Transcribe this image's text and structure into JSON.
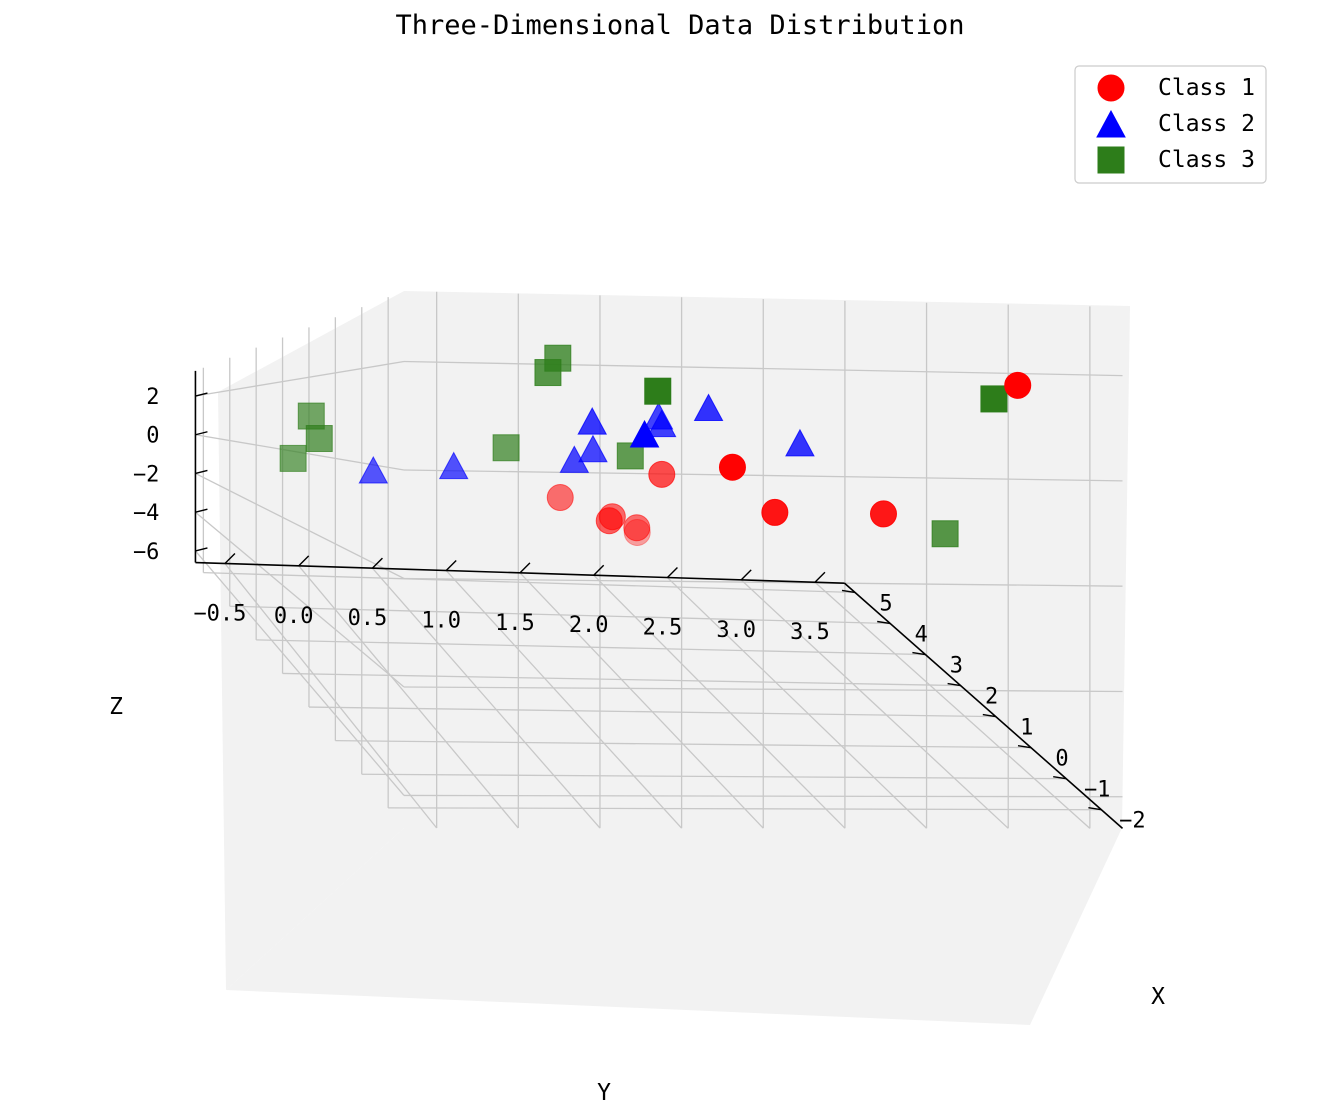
{
  "chart_data": {
    "type": "scatter",
    "title": "Three-Dimensional Data Distribution",
    "xlabel": "X",
    "ylabel": "Y",
    "zlabel": "Z",
    "x_ticks": [
      "−2",
      "−1",
      "0",
      "1",
      "2",
      "3",
      "4",
      "5"
    ],
    "y_ticks": [
      "−0.5",
      "0.0",
      "0.5",
      "1.0",
      "1.5",
      "2.0",
      "2.5",
      "3.0",
      "3.5"
    ],
    "z_ticks": [
      "2",
      "0",
      "−2",
      "−4",
      "−6"
    ],
    "grid": true,
    "legend_position": "top-right",
    "series": [
      {
        "name": "Class 1",
        "marker": "circle",
        "color": "#ff0000",
        "points": [
          {
            "x": -2.4,
            "y": 3.1,
            "z": 1.8
          },
          {
            "x": 1.2,
            "y": 1.6,
            "z": -0.3
          },
          {
            "x": -1.6,
            "y": 1.5,
            "z": 0.1
          },
          {
            "x": -0.9,
            "y": 1.9,
            "z": -0.9
          },
          {
            "x": -0.8,
            "y": 2.6,
            "z": -0.9
          },
          {
            "x": 2.5,
            "y": 1.2,
            "z": -1.3
          },
          {
            "x": 2.3,
            "y": 1.5,
            "z": -1.8
          },
          {
            "x": 1.9,
            "y": 1.4,
            "z": -1.8
          },
          {
            "x": 2.5,
            "y": 1.7,
            "z": -2.2
          },
          {
            "x": 4.4,
            "y": 2.1,
            "z": -3.4
          }
        ]
      },
      {
        "name": "Class 2",
        "marker": "triangle",
        "color": "#0000ff",
        "points": [
          {
            "x": 0.2,
            "y": 1.7,
            "z": 1.4
          },
          {
            "x": 0.8,
            "y": 1.5,
            "z": 1.2
          },
          {
            "x": -1.9,
            "y": 0.9,
            "z": 0.7
          },
          {
            "x": 0.4,
            "y": 1.0,
            "z": 1.0
          },
          {
            "x": 0.7,
            "y": 1.5,
            "z": 1.0
          },
          {
            "x": 0.3,
            "y": 2.3,
            "z": 0.6
          },
          {
            "x": 0.9,
            "y": 1.1,
            "z": 0.3
          },
          {
            "x": 1.0,
            "y": 1.0,
            "z": 0.0
          },
          {
            "x": 1.4,
            "y": 0.3,
            "z": -0.3
          },
          {
            "x": 1.5,
            "y": -0.2,
            "z": -0.5
          }
        ]
      },
      {
        "name": "Class 3",
        "marker": "square",
        "color": "#2d7d1a",
        "points": [
          {
            "x": 0.5,
            "y": 0.8,
            "z": 2.6
          },
          {
            "x": 0.3,
            "y": 0.7,
            "z": 2.2
          },
          {
            "x": -1.8,
            "y": 1.0,
            "z": 1.6
          },
          {
            "x": -1.7,
            "y": 3.1,
            "z": 1.6
          },
          {
            "x": 1.5,
            "y": -0.6,
            "z": 1.0
          },
          {
            "x": 1.2,
            "y": 0.6,
            "z": 0.3
          },
          {
            "x": 0.7,
            "y": 1.3,
            "z": 0.2
          },
          {
            "x": 1.2,
            "y": -0.6,
            "z": 0.4
          },
          {
            "x": 1.6,
            "y": -0.7,
            "z": -0.2
          },
          {
            "x": 0.2,
            "y": 3.2,
            "z": -1.5
          }
        ]
      }
    ]
  }
}
